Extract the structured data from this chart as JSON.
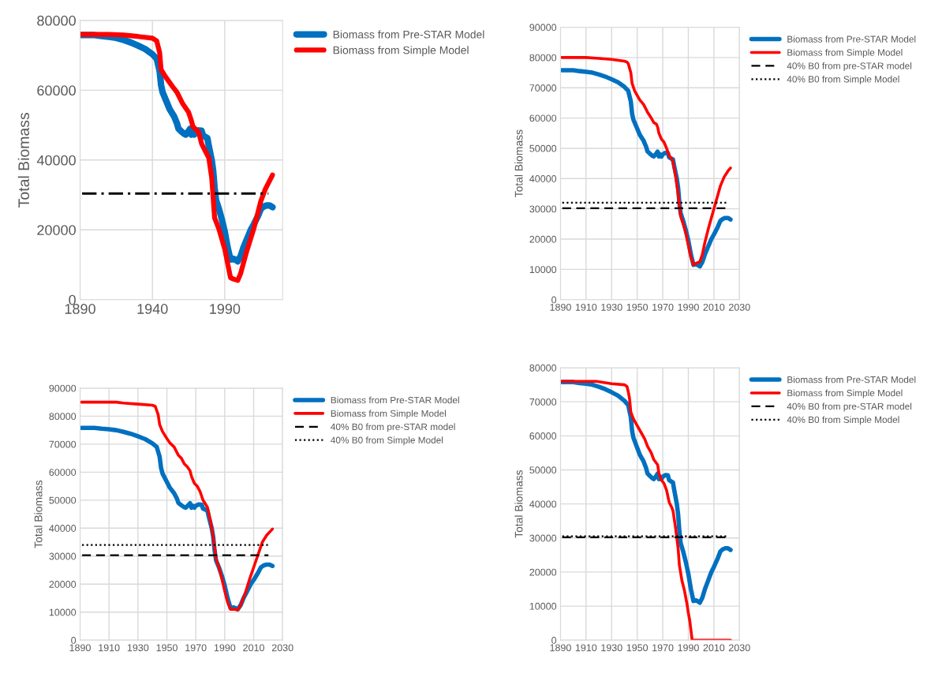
{
  "chart_data": [
    {
      "type": "line",
      "ylabel": "Total Biomass",
      "xlim": [
        1890,
        2030
      ],
      "xticks": [
        1890,
        1940,
        1990
      ],
      "ylim": [
        0,
        80000
      ],
      "yticks": [
        0,
        20000,
        40000,
        60000,
        80000
      ],
      "grid": true,
      "legend": "right",
      "series": [
        {
          "name": "Biomass from Pre-STAR Model",
          "color": "#0070c0",
          "x": [
            1891,
            1900,
            1905,
            1910,
            1915,
            1920,
            1925,
            1930,
            1935,
            1940,
            1943,
            1945,
            1946,
            1947,
            1950,
            1952,
            1955,
            1957,
            1958,
            1960,
            1962,
            1963,
            1965,
            1966,
            1967,
            1968,
            1969,
            1970,
            1972,
            1974,
            1975,
            1977,
            1978,
            1979,
            1981,
            1982,
            1983,
            1984,
            1986,
            1988,
            1990,
            1992,
            1994,
            1996,
            1998,
            1999,
            2001,
            2003,
            2005,
            2008,
            2010,
            2013,
            2015,
            2017,
            2019,
            2021,
            2023
          ],
          "values": [
            75800,
            75800,
            75500,
            75300,
            75000,
            74400,
            73700,
            72800,
            71800,
            70300,
            69000,
            65500,
            61500,
            59500,
            56500,
            54500,
            52500,
            50500,
            49000,
            48200,
            47500,
            47300,
            48300,
            48900,
            47300,
            48000,
            47300,
            48000,
            48500,
            48400,
            47000,
            46500,
            46300,
            44000,
            40000,
            37000,
            32000,
            28500,
            26000,
            23000,
            19500,
            15000,
            11500,
            11700,
            11300,
            11000,
            12500,
            15000,
            17000,
            20000,
            21500,
            24000,
            26000,
            26700,
            27000,
            27000,
            26500
          ]
        },
        {
          "name": "Biomass from Simple Model",
          "color": "#ff0000",
          "x": [
            1891,
            1910,
            1920,
            1930,
            1940,
            1943,
            1945,
            1946,
            1949,
            1954,
            1957,
            1961,
            1965,
            1967,
            1968,
            1972,
            1974,
            1977,
            1979,
            1981,
            1983,
            1986,
            1990,
            1994,
            1996,
            1999,
            2001,
            2005,
            2010,
            2015,
            2018,
            2023
          ],
          "values": [
            76000,
            76000,
            75800,
            75400,
            74900,
            74100,
            70800,
            65900,
            63900,
            61000,
            59400,
            56100,
            53700,
            51200,
            49600,
            48000,
            44700,
            42200,
            40600,
            34900,
            23400,
            20200,
            14500,
            6300,
            5900,
            5500,
            7500,
            13600,
            20200,
            28300,
            31600,
            35700
          ]
        }
      ],
      "ref_lines": [
        {
          "axis": "y",
          "value": 30400,
          "color": "#000000",
          "line_style": "dashdot"
        }
      ]
    },
    {
      "type": "line",
      "ylabel": "Total Biomass",
      "xlim": [
        1890,
        2030
      ],
      "xticks": [
        1890,
        1910,
        1930,
        1950,
        1970,
        1990,
        2010,
        2030
      ],
      "ylim": [
        0,
        90000
      ],
      "yticks": [
        0,
        10000,
        20000,
        30000,
        40000,
        50000,
        60000,
        70000,
        80000,
        90000
      ],
      "grid": true,
      "legend": "right",
      "series": [
        {
          "name": "Biomass from Pre-STAR Model",
          "color": "#0070c0",
          "x": [
            1891,
            1900,
            1905,
            1910,
            1915,
            1920,
            1925,
            1930,
            1935,
            1940,
            1943,
            1945,
            1946,
            1947,
            1950,
            1952,
            1955,
            1957,
            1958,
            1960,
            1962,
            1963,
            1965,
            1966,
            1967,
            1968,
            1969,
            1970,
            1972,
            1974,
            1975,
            1977,
            1978,
            1979,
            1981,
            1982,
            1983,
            1984,
            1986,
            1988,
            1990,
            1992,
            1994,
            1996,
            1998,
            1999,
            2001,
            2003,
            2005,
            2008,
            2010,
            2013,
            2015,
            2017,
            2019,
            2021,
            2023
          ],
          "values": [
            75800,
            75800,
            75500,
            75300,
            75000,
            74400,
            73700,
            72800,
            71800,
            70300,
            69000,
            65500,
            61500,
            59500,
            56500,
            54500,
            52500,
            50500,
            49000,
            48200,
            47500,
            47300,
            48300,
            48900,
            47300,
            48000,
            47300,
            48000,
            48500,
            48400,
            47000,
            46500,
            46300,
            44000,
            40000,
            37000,
            32000,
            28500,
            26000,
            23000,
            19500,
            15000,
            11500,
            11700,
            11300,
            11000,
            12500,
            15000,
            17000,
            20000,
            21500,
            24000,
            26000,
            26700,
            27000,
            27000,
            26500
          ]
        },
        {
          "name": "Biomass from Simple Model",
          "color": "#ff0000",
          "x": [
            1891,
            1910,
            1920,
            1930,
            1940,
            1942,
            1943,
            1945,
            1946,
            1948,
            1950,
            1952,
            1955,
            1958,
            1961,
            1963,
            1965,
            1966,
            1967,
            1969,
            1971,
            1973,
            1975,
            1977,
            1978,
            1980,
            1982,
            1984,
            1986,
            1988,
            1990,
            1992,
            1994,
            1996,
            1999,
            2001,
            2003,
            2006,
            2009,
            2012,
            2015,
            2018,
            2021,
            2023
          ],
          "values": [
            80000,
            80000,
            79700,
            79400,
            78800,
            78500,
            78000,
            75000,
            71500,
            69000,
            67500,
            66000,
            64500,
            62000,
            60000,
            58500,
            58000,
            57000,
            55000,
            53000,
            52000,
            50000,
            47500,
            46500,
            45500,
            41000,
            35000,
            27500,
            25000,
            22000,
            18000,
            14000,
            11500,
            12000,
            12500,
            15000,
            19000,
            24000,
            28500,
            33000,
            37500,
            40500,
            42500,
            43500
          ]
        }
      ],
      "ref_lines": [
        {
          "axis": "y",
          "value": 30200,
          "color": "#000000",
          "line_style": "dashed",
          "label": "40% B0 from pre-STAR model"
        },
        {
          "axis": "y",
          "value": 32000,
          "color": "#000000",
          "line_style": "dotted",
          "label": "40% B0 from Simple Model"
        }
      ]
    },
    {
      "type": "line",
      "ylabel": "Total Biomass",
      "xlim": [
        1890,
        2030
      ],
      "xticks": [
        1890,
        1910,
        1930,
        1950,
        1970,
        1990,
        2010,
        2030
      ],
      "ylim": [
        0,
        90000
      ],
      "yticks": [
        0,
        10000,
        20000,
        30000,
        40000,
        50000,
        60000,
        70000,
        80000,
        90000
      ],
      "grid": true,
      "legend": "right",
      "series": [
        {
          "name": "Biomass from Pre-STAR Model",
          "color": "#0070c0",
          "x": [
            1891,
            1900,
            1905,
            1910,
            1915,
            1920,
            1925,
            1930,
            1935,
            1940,
            1943,
            1945,
            1946,
            1947,
            1950,
            1952,
            1955,
            1957,
            1958,
            1960,
            1962,
            1963,
            1965,
            1966,
            1967,
            1968,
            1969,
            1970,
            1972,
            1974,
            1975,
            1977,
            1978,
            1979,
            1981,
            1982,
            1983,
            1984,
            1986,
            1988,
            1990,
            1992,
            1994,
            1996,
            1998,
            1999,
            2001,
            2003,
            2005,
            2008,
            2010,
            2013,
            2015,
            2017,
            2019,
            2021,
            2023
          ],
          "values": [
            75800,
            75800,
            75500,
            75300,
            75000,
            74400,
            73700,
            72800,
            71800,
            70300,
            69000,
            65500,
            61500,
            59500,
            56500,
            54500,
            52500,
            50500,
            49000,
            48200,
            47500,
            47300,
            48300,
            48900,
            47300,
            48000,
            47300,
            48000,
            48500,
            48400,
            47000,
            46500,
            46300,
            44000,
            40000,
            37000,
            32000,
            28500,
            26000,
            23000,
            19500,
            15000,
            11500,
            11700,
            11300,
            11000,
            12500,
            15000,
            17000,
            20000,
            21500,
            24000,
            26000,
            26700,
            27000,
            27000,
            26500
          ]
        },
        {
          "name": "Biomass from Simple Model",
          "color": "#ff0000",
          "x": [
            1891,
            1915,
            1920,
            1930,
            1940,
            1942,
            1944,
            1945,
            1947,
            1950,
            1952,
            1955,
            1958,
            1960,
            1962,
            1964,
            1966,
            1967,
            1969,
            1971,
            1973,
            1975,
            1978,
            1980,
            1982,
            1984,
            1986,
            1988,
            1990,
            1992,
            1994,
            1997,
            1999,
            2001,
            2004,
            2007,
            2010,
            2013,
            2016,
            2019,
            2023
          ],
          "values": [
            85000,
            85000,
            84700,
            84300,
            83900,
            83500,
            80500,
            77000,
            74500,
            72000,
            70500,
            69000,
            66000,
            65000,
            63000,
            62000,
            60500,
            58500,
            56000,
            55000,
            53000,
            50000,
            47500,
            43000,
            37000,
            29000,
            26000,
            22000,
            17500,
            13500,
            11000,
            11000,
            10800,
            12500,
            16500,
            21500,
            26000,
            30500,
            35000,
            37500,
            39700
          ]
        }
      ],
      "ref_lines": [
        {
          "axis": "y",
          "value": 30300,
          "color": "#000000",
          "line_style": "dashed",
          "label": "40% B0 from pre-STAR model"
        },
        {
          "axis": "y",
          "value": 34000,
          "color": "#000000",
          "line_style": "dotted",
          "label": "40% B0 from Simple Model"
        }
      ]
    },
    {
      "type": "line",
      "ylabel": "Total Biomass",
      "xlim": [
        1890,
        2030
      ],
      "xticks": [
        1890,
        1910,
        1930,
        1950,
        1970,
        1990,
        2010,
        2030
      ],
      "ylim": [
        0,
        80000
      ],
      "yticks": [
        0,
        10000,
        20000,
        30000,
        40000,
        50000,
        60000,
        70000,
        80000
      ],
      "grid": true,
      "legend": "right",
      "series": [
        {
          "name": "Biomass from Pre-STAR Model",
          "color": "#0070c0",
          "x": [
            1891,
            1900,
            1905,
            1910,
            1915,
            1920,
            1925,
            1930,
            1935,
            1940,
            1943,
            1945,
            1946,
            1947,
            1950,
            1952,
            1955,
            1957,
            1958,
            1960,
            1962,
            1963,
            1965,
            1966,
            1967,
            1968,
            1969,
            1970,
            1972,
            1974,
            1975,
            1977,
            1978,
            1979,
            1981,
            1982,
            1983,
            1984,
            1986,
            1988,
            1990,
            1992,
            1994,
            1996,
            1998,
            1999,
            2001,
            2003,
            2005,
            2008,
            2010,
            2013,
            2015,
            2017,
            2019,
            2021,
            2023
          ],
          "values": [
            75800,
            75800,
            75500,
            75300,
            75000,
            74400,
            73700,
            72800,
            71800,
            70300,
            69000,
            65500,
            61500,
            59500,
            56500,
            54500,
            52500,
            50500,
            49000,
            48200,
            47500,
            47300,
            48300,
            48900,
            47300,
            48000,
            47300,
            48000,
            48500,
            48400,
            47000,
            46500,
            46300,
            44000,
            40000,
            37000,
            32000,
            28500,
            26000,
            23000,
            19500,
            15000,
            11500,
            11700,
            11300,
            11000,
            12500,
            15000,
            17000,
            20000,
            21500,
            24000,
            26000,
            26700,
            27000,
            27000,
            26500
          ]
        },
        {
          "name": "Biomass from Simple Model",
          "color": "#ff0000",
          "x": [
            1891,
            1918,
            1925,
            1930,
            1940,
            1942,
            1943,
            1944,
            1945,
            1947,
            1950,
            1953,
            1956,
            1958,
            1961,
            1963,
            1966,
            1967,
            1969,
            1971,
            1973,
            1975,
            1977,
            1978,
            1980,
            1982,
            1983,
            1985,
            1987,
            1989,
            1990,
            1991,
            1992,
            1993,
            2000,
            2023
          ],
          "values": [
            76000,
            76000,
            75600,
            75300,
            75000,
            74500,
            73000,
            71000,
            67000,
            65000,
            63000,
            61000,
            59000,
            57000,
            55000,
            53000,
            51500,
            49000,
            47000,
            46000,
            44000,
            40500,
            39000,
            38000,
            33000,
            27000,
            22000,
            17500,
            14500,
            10500,
            8000,
            6000,
            3000,
            0,
            0,
            0
          ]
        }
      ],
      "ref_lines": [
        {
          "axis": "y",
          "value": 30200,
          "color": "#000000",
          "line_style": "dashed",
          "label": "40% B0 from pre-STAR model"
        },
        {
          "axis": "y",
          "value": 30500,
          "color": "#000000",
          "line_style": "dotted",
          "label": "40% B0 from Simple Model"
        }
      ]
    }
  ]
}
